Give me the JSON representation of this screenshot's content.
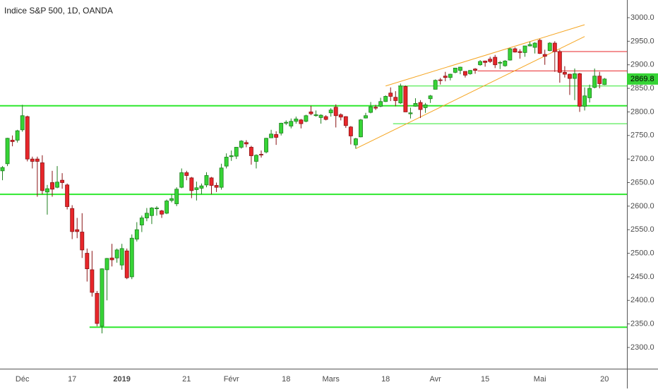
{
  "chart_data": {
    "type": "candlestick",
    "title": "Indice S&P 500, 1D, OANDA",
    "categories": [
      null,
      null,
      null,
      null,
      "Déc",
      null,
      null,
      null,
      null,
      null,
      null,
      null,
      null,
      null,
      "17",
      null,
      null,
      null,
      null,
      null,
      null,
      null,
      null,
      null,
      "2019",
      null,
      null,
      null,
      null,
      null,
      null,
      null,
      null,
      null,
      null,
      null,
      null,
      "21",
      null,
      null,
      null,
      null,
      null,
      null,
      null,
      null,
      "Févr",
      null,
      null,
      null,
      null,
      null,
      null,
      null,
      null,
      null,
      null,
      "18",
      null,
      null,
      null,
      null,
      null,
      null,
      null,
      null,
      "Mars",
      null,
      null,
      null,
      null,
      null,
      null,
      null,
      null,
      null,
      null,
      "18",
      null,
      null,
      null,
      null,
      null,
      null,
      null,
      null,
      null,
      "Avr",
      null,
      null,
      null,
      null,
      null,
      null,
      null,
      null,
      null,
      "15",
      null,
      null,
      null,
      null,
      null,
      null,
      null,
      null,
      null,
      null,
      "Mai",
      null,
      null,
      null,
      null,
      null,
      null,
      null,
      null,
      null,
      null,
      null,
      null,
      "20",
      null,
      null,
      null,
      null
    ],
    "open": [
      2675,
      2690,
      2740,
      2740,
      2762,
      2790,
      2700,
      2700,
      2692,
      2630,
      2650,
      2640,
      2655,
      2645,
      2595,
      2550,
      2545,
      2500,
      2465,
      2415,
      2345,
      2465,
      2490,
      2490,
      2475,
      2505,
      2450,
      2530,
      2560,
      2575,
      2580,
      2595,
      2590,
      2585,
      2612,
      2605,
      2640,
      2671,
      2660,
      2635,
      2638,
      2645,
      2660,
      2644,
      2640,
      2685,
      2705,
      2706,
      2725,
      2735,
      2725,
      2695,
      2710,
      2715,
      2745,
      2752,
      2755,
      2776,
      2770,
      2780,
      2783,
      2780,
      2800,
      2792,
      2788,
      2790,
      2798,
      2810,
      2794,
      2790,
      2768,
      2730,
      2747,
      2787,
      2799,
      2810,
      2812,
      2822,
      2840,
      2831,
      2819,
      2854,
      2796,
      2812,
      2820,
      2809,
      2828,
      2848,
      2868,
      2876,
      2873,
      2884,
      2888,
      2886,
      2881,
      2891,
      2900,
      2908,
      2912,
      2916,
      2904,
      2898,
      2910,
      2934,
      2928,
      2926,
      2940,
      2937,
      2952,
      2922,
      2930,
      2946,
      2928,
      2884,
      2880,
      2871,
      2881,
      2812,
      2830,
      2852,
      2876,
      2858,
      null,
      null,
      null,
      null
    ],
    "high": [
      2685,
      2745,
      2750,
      2762,
      2815,
      2792,
      2705,
      2705,
      2708,
      2645,
      2675,
      2685,
      2670,
      2648,
      2602,
      2575,
      2585,
      2510,
      2505,
      2420,
      2468,
      2490,
      2520,
      2510,
      2520,
      2510,
      2540,
      2566,
      2580,
      2596,
      2598,
      2600,
      2592,
      2614,
      2625,
      2640,
      2680,
      2675,
      2662,
      2652,
      2648,
      2672,
      2662,
      2650,
      2690,
      2712,
      2718,
      2725,
      2740,
      2740,
      2728,
      2710,
      2718,
      2745,
      2762,
      2759,
      2777,
      2782,
      2786,
      2790,
      2785,
      2794,
      2813,
      2803,
      2795,
      2793,
      2808,
      2816,
      2797,
      2791,
      2770,
      2745,
      2785,
      2798,
      2821,
      2815,
      2830,
      2835,
      2852,
      2844,
      2860,
      2856,
      2809,
      2829,
      2825,
      2819,
      2836,
      2869,
      2872,
      2885,
      2881,
      2893,
      2896,
      2886,
      2889,
      2893,
      2910,
      2909,
      2917,
      2921,
      2908,
      2910,
      2936,
      2937,
      2933,
      2940,
      2949,
      2948,
      2955,
      2932,
      2948,
      2950,
      2932,
      2897,
      2881,
      2892,
      2883,
      2852,
      2858,
      2892,
      2885,
      2872,
      null,
      null,
      null,
      null
    ],
    "low": [
      2655,
      2685,
      2727,
      2735,
      2758,
      2695,
      2680,
      2620,
      2625,
      2582,
      2620,
      2638,
      2637,
      2593,
      2530,
      2532,
      2490,
      2440,
      2408,
      2345,
      2330,
      2400,
      2472,
      2480,
      2465,
      2445,
      2445,
      2525,
      2545,
      2568,
      2562,
      2580,
      2575,
      2583,
      2608,
      2600,
      2638,
      2655,
      2617,
      2612,
      2625,
      2640,
      2625,
      2630,
      2635,
      2680,
      2696,
      2700,
      2722,
      2725,
      2688,
      2680,
      2703,
      2712,
      2745,
      2730,
      2750,
      2772,
      2765,
      2775,
      2765,
      2778,
      2793,
      2790,
      2775,
      2782,
      2790,
      2767,
      2782,
      2766,
      2731,
      2722,
      2746,
      2786,
      2797,
      2804,
      2810,
      2821,
      2823,
      2812,
      2817,
      2800,
      2786,
      2811,
      2787,
      2798,
      2819,
      2848,
      2858,
      2865,
      2867,
      2882,
      2880,
      2873,
      2879,
      2881,
      2898,
      2896,
      2904,
      2893,
      2891,
      2896,
      2909,
      2926,
      2913,
      2917,
      2939,
      2924,
      2923,
      2900,
      2929,
      2885,
      2862,
      2873,
      2836,
      2825,
      2800,
      2803,
      2820,
      2850,
      2850,
      2857,
      null,
      null,
      null,
      null
    ],
    "close": [
      2682,
      2744,
      2737,
      2760,
      2792,
      2700,
      2695,
      2695,
      2633,
      2637,
      2636,
      2651,
      2650,
      2599,
      2546,
      2546,
      2507,
      2467,
      2417,
      2351,
      2467,
      2489,
      2486,
      2507,
      2510,
      2448,
      2532,
      2550,
      2575,
      2585,
      2596,
      2596,
      2583,
      2611,
      2616,
      2636,
      2671,
      2665,
      2633,
      2639,
      2643,
      2665,
      2644,
      2640,
      2681,
      2704,
      2707,
      2725,
      2738,
      2732,
      2707,
      2708,
      2709,
      2744,
      2753,
      2746,
      2776,
      2778,
      2780,
      2785,
      2775,
      2792,
      2796,
      2794,
      2793,
      2784,
      2804,
      2792,
      2789,
      2771,
      2749,
      2743,
      2783,
      2792,
      2811,
      2808,
      2822,
      2833,
      2833,
      2824,
      2855,
      2800,
      2798,
      2818,
      2805,
      2815,
      2834,
      2867,
      2867,
      2873,
      2880,
      2893,
      2895,
      2878,
      2888,
      2888,
      2907,
      2905,
      2907,
      2900,
      2905,
      2908,
      2934,
      2927,
      2926,
      2940,
      2943,
      2946,
      2924,
      2918,
      2946,
      2928,
      2884,
      2880,
      2871,
      2881,
      2812,
      2834,
      2850,
      2876,
      2860,
      2869.8,
      null,
      null,
      null,
      null
    ],
    "up_color": "#36d436",
    "down_color": "#e8262a",
    "ylim": [
      2255,
      3037.5
    ],
    "yticks": [
      {
        "value": 2300,
        "label": "2300.0"
      },
      {
        "value": 2350,
        "label": "2350.0"
      },
      {
        "value": 2400,
        "label": "2400.0"
      },
      {
        "value": 2450,
        "label": "2450.0"
      },
      {
        "value": 2500,
        "label": "2500.0"
      },
      {
        "value": 2550,
        "label": "2550.0"
      },
      {
        "value": 2600,
        "label": "2600.0"
      },
      {
        "value": 2650,
        "label": "2650.0"
      },
      {
        "value": 2700,
        "label": "2700.0"
      },
      {
        "value": 2750,
        "label": "2750.0"
      },
      {
        "value": 2800,
        "label": "2800.0"
      },
      {
        "value": 2850,
        "label": "2850.0"
      },
      {
        "value": 2900,
        "label": "2900.0"
      },
      {
        "value": 2950,
        "label": "2950.0"
      },
      {
        "value": 3000,
        "label": "3000.0"
      }
    ],
    "levels": [
      {
        "price": 2813,
        "from": 0,
        "color": "#2ee82e",
        "width": 2
      },
      {
        "price": 2625,
        "from": 0,
        "color": "#2ee82e",
        "width": 2
      },
      {
        "price": 2343,
        "from": 18,
        "color": "#2ee82e",
        "width": 2
      },
      {
        "price": 2855,
        "from": 80,
        "color": "#2ee82e",
        "width": 1
      },
      {
        "price": 2775,
        "from": 79,
        "color": "#2ee82e",
        "width": 1
      },
      {
        "price": 2928,
        "from": 111,
        "color": "#e8262a",
        "width": 1
      },
      {
        "price": 2887,
        "from": 96,
        "color": "#e8262a",
        "width": 1
      }
    ],
    "trendlines": [
      {
        "points": [
          [
            77,
            2855
          ],
          [
            117,
            2985
          ]
        ],
        "color": "#f5a623"
      },
      {
        "points": [
          [
            71,
            2722
          ],
          [
            117,
            2960
          ]
        ],
        "color": "#f5a623"
      }
    ],
    "last_price_color": "#36d436"
  }
}
